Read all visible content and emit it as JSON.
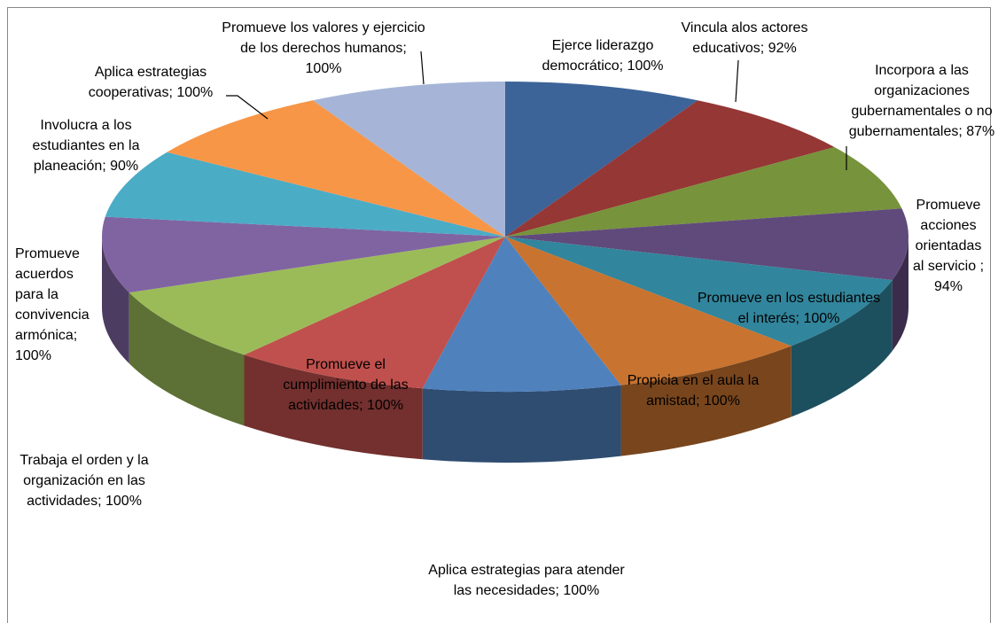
{
  "chart_data": {
    "type": "pie3d",
    "values": [
      100,
      92,
      87,
      94,
      100,
      100,
      100,
      100,
      100,
      100,
      90,
      100,
      100
    ],
    "value_labels": [
      "Ejerce liderazgo democrático; 100%",
      "Vincula alos actores educativos; 92%",
      "Incorpora a las organizaciones gubernamentales o no gubernamentales; 87%",
      "Promueve acciones orientadas al servicio ; 94%",
      "Promueve en los estudiantes el interés; 100%",
      "Propicia en el aula la amistad; 100%",
      "Aplica estrategias para atender las necesidades; 100%",
      "Promueve el cumplimiento de las actividades; 100%",
      "Trabaja el orden y la organización en las actividades; 100%",
      "Promueve acuerdos para la convivencia armónica; 100%",
      "Involucra a los estudiantes en la planeación; 90%",
      "Aplica estrategias cooperativas; 100%",
      "Promueve los valores y ejercicio de los derechos humanos; 100%"
    ],
    "colors": [
      "#3c6499",
      "#953735",
      "#77933c",
      "#604a7b",
      "#31859c",
      "#c8732f",
      "#4f81bd",
      "#c0504d",
      "#9bbb59",
      "#8064a2",
      "#4bacc6",
      "#f79646",
      "#a6b5d7"
    ]
  }
}
